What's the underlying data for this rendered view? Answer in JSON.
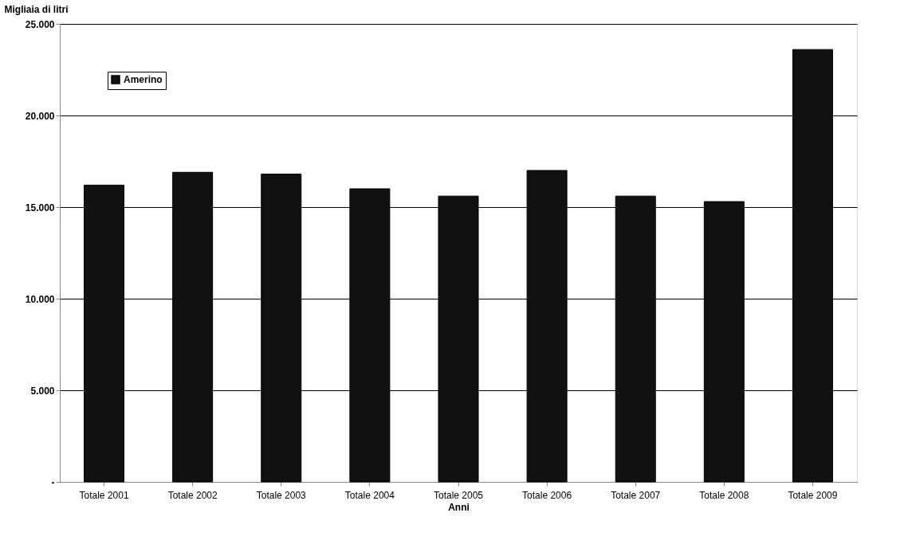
{
  "chart_data": {
    "type": "bar",
    "ylabel": "Migliaia di litri",
    "xlabel": "Anni",
    "categories": [
      "Totale 2001",
      "Totale 2002",
      "Totale 2003",
      "Totale 2004",
      "Totale 2005",
      "Totale 2006",
      "Totale 2007",
      "Totale 2008",
      "Totale 2009"
    ],
    "series": [
      {
        "name": "Amerino",
        "color": "#111111",
        "values": [
          16200,
          16900,
          16800,
          16000,
          15600,
          17000,
          15600,
          15300,
          23600
        ]
      }
    ],
    "ylim": [
      0,
      25000
    ],
    "yticks": [
      {
        "value": 0,
        "label": "-"
      },
      {
        "value": 5000,
        "label": "5.000"
      },
      {
        "value": 10000,
        "label": "10.000"
      },
      {
        "value": 15000,
        "label": "15.000"
      },
      {
        "value": 20000,
        "label": "20.000"
      },
      {
        "value": 25000,
        "label": "25.000"
      }
    ],
    "grid": "y",
    "legend": "top left"
  }
}
